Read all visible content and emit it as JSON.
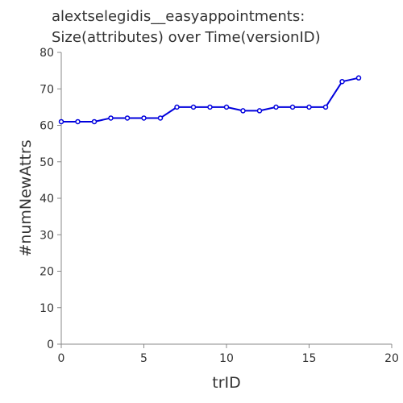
{
  "chart_data": {
    "type": "line",
    "title_lines": [
      "alextselegidis__easyappointments:",
      "Size(attributes) over Time(versionID)"
    ],
    "xlabel": "trID",
    "ylabel": "#numNewAttrs",
    "xlim": [
      0,
      20
    ],
    "ylim": [
      0,
      80
    ],
    "xticks": [
      0,
      5,
      10,
      15,
      20
    ],
    "yticks": [
      0,
      10,
      20,
      30,
      40,
      50,
      60,
      70,
      80
    ],
    "grid": false,
    "legend": "none",
    "series": [
      {
        "color": "#0000dd",
        "x": [
          0,
          1,
          2,
          3,
          4,
          5,
          6,
          7,
          8,
          9,
          10,
          11,
          12,
          13,
          14,
          15,
          16,
          17,
          18
        ],
        "y": [
          61,
          61,
          61,
          62,
          62,
          62,
          62,
          65,
          65,
          65,
          65,
          64,
          64,
          65,
          65,
          65,
          65,
          72,
          73
        ]
      }
    ]
  }
}
